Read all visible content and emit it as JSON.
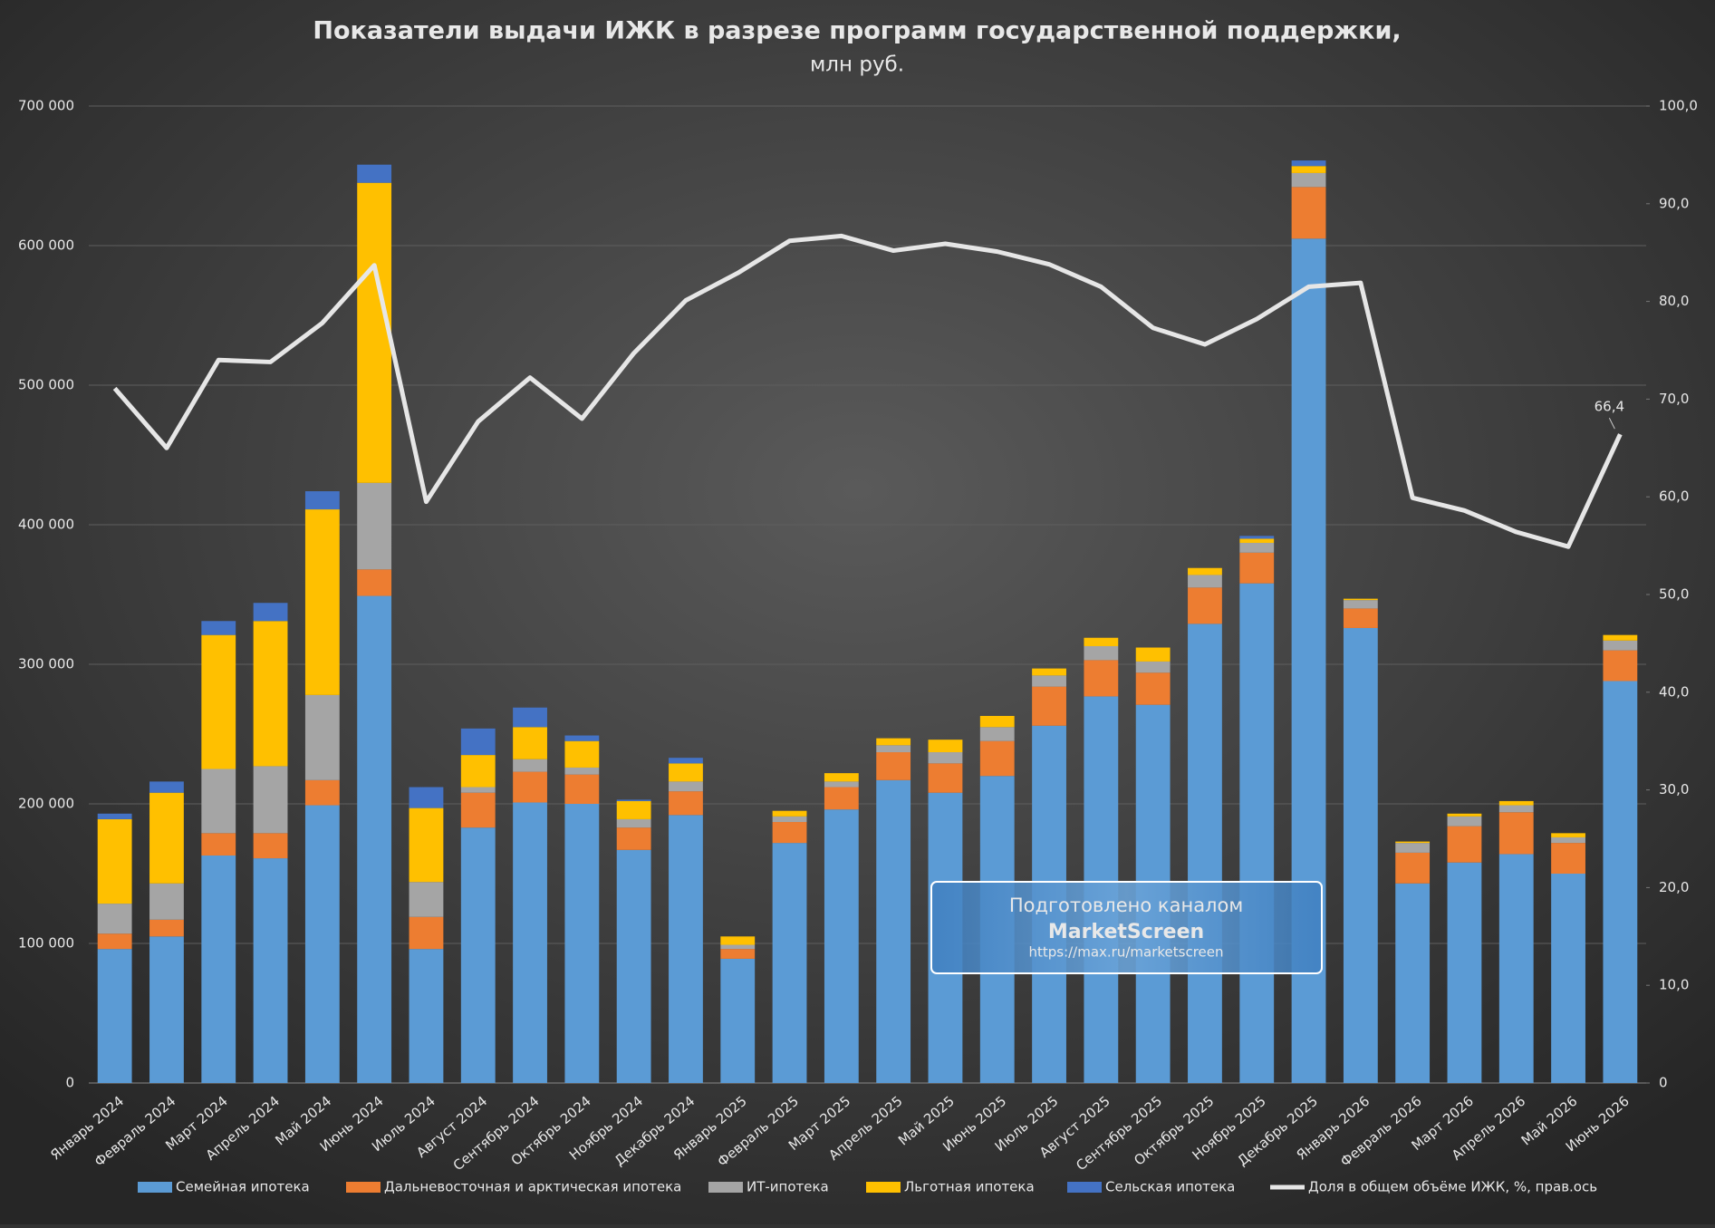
{
  "chart_data": {
    "type": "bar",
    "stacked": true,
    "title": "Показатели выдачи ИЖК в разрезе программ государственной поддержки,",
    "subtitle": "млн руб.",
    "categories": [
      "Январь 2024",
      "Февраль 2024",
      "Март 2024",
      "Апрель 2024",
      "Май 2024",
      "Июнь 2024",
      "Июль 2024",
      "Август 2024",
      "Сентябрь 2024",
      "Октябрь 2024",
      "Ноябрь 2024",
      "Декабрь 2024",
      "Январь 2025",
      "Февраль 2025",
      "Март 2025",
      "Апрель 2025",
      "Май 2025",
      "Июнь 2025",
      "Июль 2025",
      "Август 2025",
      "Сентябрь 2025",
      "Октябрь 2025",
      "Ноябрь 2025",
      "Декабрь 2025",
      "Январь 2026",
      "Февраль 2026",
      "Март 2026",
      "Апрель 2026",
      "Май 2026",
      "Июнь 2026"
    ],
    "series": [
      {
        "name": "Семейная ипотека",
        "color": "#5b9bd5",
        "values": [
          96000,
          105000,
          163000,
          161000,
          199000,
          349000,
          96000,
          183000,
          201000,
          200000,
          167000,
          192000,
          89000,
          172000,
          196000,
          217000,
          208000,
          220000,
          256000,
          277000,
          271000,
          329000,
          358000,
          605000,
          326000,
          143000,
          158000,
          164000,
          150000,
          288000
        ]
      },
      {
        "name": "Дальневосточная и арктическая ипотека",
        "color": "#ed7d31",
        "values": [
          11000,
          12000,
          16000,
          18000,
          18000,
          19000,
          23000,
          25000,
          22000,
          21000,
          16000,
          17000,
          7000,
          15000,
          16000,
          20000,
          21000,
          25000,
          28000,
          26000,
          23000,
          26000,
          22000,
          37000,
          14000,
          22000,
          26000,
          30000,
          22000,
          22000
        ]
      },
      {
        "name": "ИТ-ипотека",
        "color": "#a5a5a5",
        "values": [
          21500,
          26000,
          46000,
          48000,
          61000,
          62000,
          25000,
          4000,
          9000,
          5000,
          6000,
          7000,
          3000,
          4000,
          4000,
          5000,
          8000,
          10000,
          8000,
          10000,
          8000,
          9000,
          7000,
          10000,
          6000,
          7000,
          7000,
          5000,
          4000,
          7000
        ]
      },
      {
        "name": "Льготная ипотека",
        "color": "#ffc000",
        "values": [
          60500,
          65000,
          96000,
          104000,
          133000,
          215000,
          53000,
          23000,
          23000,
          19000,
          13000,
          13000,
          6000,
          4000,
          6000,
          5000,
          9000,
          8000,
          5000,
          6000,
          10000,
          5000,
          3000,
          5000,
          1000,
          1000,
          2000,
          3000,
          3000,
          4000
        ]
      },
      {
        "name": "Сельская ипотека",
        "color": "#4472c4",
        "values": [
          4000,
          8000,
          10000,
          13000,
          13000,
          13000,
          15000,
          19000,
          14000,
          4000,
          1000,
          4000,
          0,
          0,
          0,
          0,
          0,
          0,
          0,
          0,
          0,
          0,
          2000,
          4000,
          0,
          0,
          0,
          0,
          0,
          0
        ]
      },
      {
        "name": "Доля в общем объёме ИЖК, %, прав.ось",
        "type": "line",
        "axis": "y2",
        "color": "#e6e6e6",
        "values": [
          71.1,
          65.0,
          74.0,
          73.8,
          77.8,
          83.7,
          59.5,
          67.7,
          72.2,
          68.0,
          74.7,
          80.1,
          82.9,
          86.2,
          86.7,
          85.2,
          85.9,
          85.1,
          83.8,
          81.5,
          77.3,
          75.6,
          78.2,
          81.5,
          81.9,
          59.9,
          58.6,
          56.4,
          54.9,
          66.4
        ],
        "value_labels": [
          null,
          null,
          null,
          null,
          null,
          null,
          null,
          null,
          null,
          null,
          null,
          null,
          null,
          null,
          null,
          null,
          null,
          null,
          null,
          null,
          null,
          null,
          null,
          null,
          null,
          null,
          null,
          null,
          null,
          "66,4"
        ]
      }
    ],
    "ylim": [
      0,
      700000
    ],
    "yticks": [
      0,
      {
        "value": 100000,
        "label": "100 000"
      },
      {
        "value": 200000,
        "label": "200 000"
      },
      {
        "value": 300000,
        "label": "300 000"
      },
      {
        "value": 400000,
        "label": "400 000"
      },
      {
        "value": 500000,
        "label": "500 000"
      },
      {
        "value": 600000,
        "label": "600 000"
      },
      {
        "value": 700000,
        "label": "700 000"
      }
    ],
    "y2lim": [
      0,
      100
    ],
    "y2ticks": [
      0,
      {
        "value": 10,
        "label": "10,0"
      },
      {
        "value": 20,
        "label": "20,0"
      },
      {
        "value": 30,
        "label": "30,0"
      },
      {
        "value": 40,
        "label": "40,0"
      },
      {
        "value": 50,
        "label": "50,0"
      },
      {
        "value": 60,
        "label": "60,0"
      },
      {
        "value": 70,
        "label": "70,0"
      },
      {
        "value": 80,
        "label": "80,0"
      },
      {
        "value": 90,
        "label": "90,0"
      },
      {
        "value": 100,
        "label": "100,0"
      }
    ],
    "grid": true,
    "legend": "bottom",
    "annotations": [
      "Подготовлено каналом",
      "MarketScreen",
      "https://max.ru/marketscreen"
    ]
  }
}
